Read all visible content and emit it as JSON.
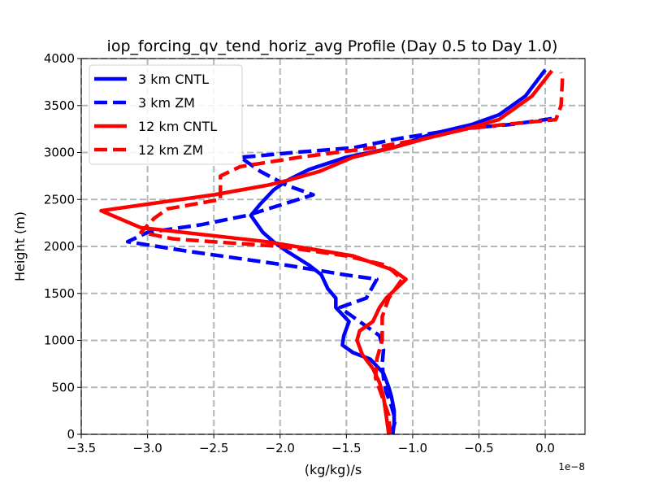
{
  "chart_data": {
    "type": "line",
    "title": "iop_forcing_qv_tend_horiz_avg Profile (Day 0.5 to Day 1.0)",
    "xlabel": "(kg/kg)/s",
    "ylabel": "Height (m)",
    "x_offset_label": "1e−8",
    "xlim": [
      -3.5,
      0.3
    ],
    "ylim": [
      0,
      4000
    ],
    "xticks": [
      -3.5,
      -3.0,
      -2.5,
      -2.0,
      -1.5,
      -1.0,
      -0.5,
      0.0
    ],
    "xtick_labels": [
      "−3.5",
      "−3.0",
      "−2.5",
      "−2.0",
      "−1.5",
      "−1.0",
      "−0.5",
      "0.0"
    ],
    "yticks": [
      0,
      500,
      1000,
      1500,
      2000,
      2500,
      3000,
      3500,
      4000
    ],
    "ytick_labels": [
      "0",
      "500",
      "1000",
      "1500",
      "2000",
      "2500",
      "3000",
      "3500",
      "4000"
    ],
    "grid": true,
    "legend_position": "upper-left",
    "series": [
      {
        "name": "3 km CNTL",
        "color": "#0000ff",
        "style": "solid",
        "x": [
          -1.15,
          -1.14,
          -1.14,
          -1.16,
          -1.18,
          -1.22,
          -1.32,
          -1.45,
          -1.53,
          -1.52,
          -1.48,
          -1.58,
          -1.58,
          -1.64,
          -1.69,
          -1.78,
          -1.95,
          -2.05,
          -2.13,
          -2.22,
          -2.15,
          -2.05,
          -1.95,
          -1.88,
          -1.78,
          -1.5,
          -1.15,
          -0.85,
          -0.55,
          -0.35,
          -0.15,
          0.0
        ],
        "y": [
          0,
          120,
          250,
          400,
          500,
          650,
          800,
          870,
          950,
          1050,
          1200,
          1350,
          1450,
          1550,
          1700,
          1800,
          1950,
          2050,
          2150,
          2330,
          2450,
          2600,
          2700,
          2750,
          2820,
          2950,
          3050,
          3200,
          3300,
          3400,
          3600,
          3880
        ]
      },
      {
        "name": "3 km ZM",
        "color": "#0000ff",
        "style": "dashed",
        "x": [
          -1.16,
          -1.13,
          -1.16,
          -1.2,
          -1.22,
          -1.23,
          -1.22,
          -1.25,
          -1.45,
          -1.55,
          -1.35,
          -1.27,
          -1.52,
          -1.95,
          -2.7,
          -3.15,
          -3.0,
          -2.6,
          -2.25,
          -1.75,
          -1.95,
          -2.15,
          -2.3,
          -2.2,
          -1.9,
          -1.45,
          -1.1,
          -0.65,
          -0.25,
          0.05
        ],
        "y": [
          0,
          150,
          300,
          450,
          600,
          750,
          900,
          1050,
          1250,
          1350,
          1450,
          1650,
          1700,
          1800,
          1950,
          2050,
          2150,
          2230,
          2330,
          2550,
          2650,
          2800,
          2950,
          2960,
          3000,
          3050,
          3150,
          3250,
          3300,
          3360
        ]
      },
      {
        "name": "12 km CNTL",
        "color": "#ff0000",
        "style": "solid",
        "x": [
          -1.18,
          -1.2,
          -1.22,
          -1.25,
          -1.3,
          -1.38,
          -1.42,
          -1.4,
          -1.3,
          -1.25,
          -1.2,
          -1.05,
          -1.15,
          -1.45,
          -2.1,
          -3.05,
          -3.35,
          -3.0,
          -2.5,
          -2.1,
          -1.95,
          -1.7,
          -1.45,
          -1.15,
          -0.9,
          -0.6,
          -0.35,
          -0.1,
          0.05
        ],
        "y": [
          0,
          200,
          400,
          550,
          700,
          850,
          1000,
          1100,
          1200,
          1350,
          1450,
          1650,
          1750,
          1900,
          2050,
          2200,
          2380,
          2450,
          2550,
          2650,
          2700,
          2800,
          2950,
          3050,
          3150,
          3250,
          3350,
          3600,
          3870
        ]
      },
      {
        "name": "12 km ZM",
        "color": "#ff0000",
        "style": "dashed",
        "x": [
          -1.17,
          -1.18,
          -1.23,
          -1.28,
          -1.27,
          -1.23,
          -1.23,
          -1.18,
          -1.08,
          -1.2,
          -1.5,
          -2.0,
          -2.8,
          -3.05,
          -2.95,
          -2.85,
          -2.45,
          -2.45,
          -2.3,
          -1.85,
          -1.3,
          -0.9,
          -0.6,
          -0.3,
          0.08,
          0.12,
          0.13,
          0.12
        ],
        "y": [
          0,
          200,
          400,
          600,
          800,
          1000,
          1250,
          1450,
          1650,
          1800,
          1900,
          2000,
          2080,
          2150,
          2300,
          2400,
          2500,
          2750,
          2850,
          2950,
          3050,
          3150,
          3250,
          3300,
          3350,
          3500,
          3800,
          3850
        ]
      }
    ]
  }
}
